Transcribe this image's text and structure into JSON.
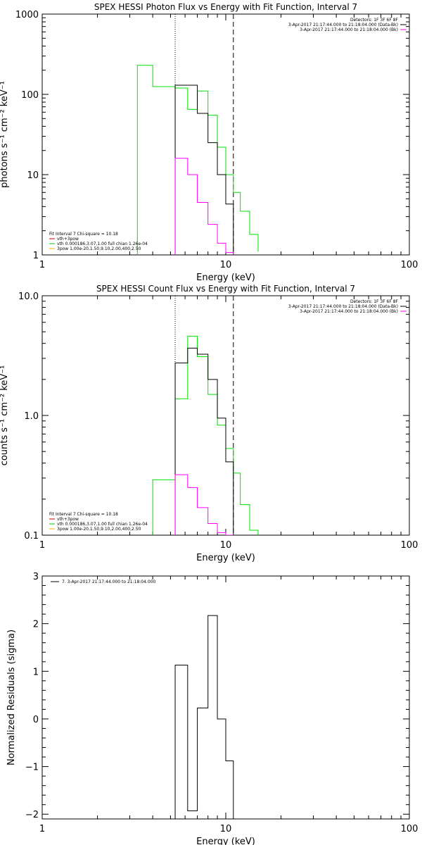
{
  "chart_data": [
    {
      "type": "line",
      "title": "SPEX HESSI Photon Flux vs Energy with Fit Function, Interval 7",
      "xlabel": "Energy (keV)",
      "ylabel": "photons s⁻¹ cm⁻² keV⁻¹",
      "xscale": "log",
      "yscale": "log",
      "xlim": [
        1,
        100
      ],
      "ylim": [
        1,
        1000
      ],
      "x_ticks": [
        "1",
        "10",
        "100"
      ],
      "y_ticks": [
        {
          "value": 1,
          "label": "1"
        },
        {
          "value": 10,
          "label": "10"
        },
        {
          "value": 100,
          "label": "100"
        },
        {
          "value": 1000,
          "label": "1000"
        }
      ],
      "vlines": [
        {
          "x": 5.3,
          "style": "dotted"
        },
        {
          "x": 11.0,
          "style": "dashed"
        }
      ],
      "legend_top": [
        {
          "text": "Detectors: 1F 3F 6F 8F",
          "color": ""
        },
        {
          "text": "3-Apr-2017 21:17:44.000 to 21:18:04.000 (Data-Bk)",
          "color": "#000000"
        },
        {
          "text": "3-Apr-2017 21:17:44.000 to 21:18:04.000 (Bk)",
          "color": "#ff00ff"
        }
      ],
      "legend_bottom": [
        {
          "text": "Fit Interval 7   Chi-square = 10.18",
          "color": ""
        },
        {
          "text": "vth+3pow",
          "color": "#cc0000"
        },
        {
          "text": "vth 0.000186,3.07,1.00  full chian 1.26e-04",
          "color": "#00cc00"
        },
        {
          "text": "3pow 1.00e-20,1.50,9.10,2.00,400,2.50",
          "color": "#ffaa00"
        }
      ],
      "series": [
        {
          "color": "#00e000",
          "edges": [
            3.3,
            4.0,
            5.3,
            6.2,
            7.0,
            8.0,
            9.0,
            10.0,
            11.0,
            12.0,
            13.5,
            15.0
          ],
          "values": [
            230,
            125,
            120,
            65,
            110,
            55,
            22,
            10,
            6,
            3.5,
            1.8,
            1.1
          ],
          "from_floor": true
        },
        {
          "color": "#000000",
          "edges": [
            5.3,
            6.2,
            7.0,
            8.0,
            9.0,
            10.0,
            11.0
          ],
          "values": [
            130,
            130,
            58,
            25,
            10,
            4.3
          ],
          "from_floor": true
        },
        {
          "color": "#ff00ff",
          "edges": [
            5.3,
            6.2,
            7.0,
            8.0,
            9.0,
            10.0,
            11.0
          ],
          "values": [
            16,
            10,
            4.5,
            2.4,
            1.4,
            1.07
          ],
          "from_floor": true
        }
      ]
    },
    {
      "type": "line",
      "title": "SPEX HESSI Count Flux vs Energy with Fit Function, Interval 7",
      "xlabel": "Energy (keV)",
      "ylabel": "counts s⁻¹ cm⁻² keV⁻¹",
      "xscale": "log",
      "yscale": "log",
      "xlim": [
        1,
        100
      ],
      "ylim": [
        0.1,
        10
      ],
      "x_ticks": [
        "1",
        "10",
        "100"
      ],
      "y_ticks": [
        {
          "value": 0.1,
          "label": "0.1"
        },
        {
          "value": 1,
          "label": "1.0"
        },
        {
          "value": 10,
          "label": "10.0"
        }
      ],
      "vlines": [
        {
          "x": 5.3,
          "style": "dotted"
        },
        {
          "x": 11.0,
          "style": "dashed"
        }
      ],
      "legend_top": [
        {
          "text": "Detectors: 1F 3F 6F 8F",
          "color": ""
        },
        {
          "text": "3-Apr-2017 21:17:44.000 to 21:18:04.000 (Data-Bk)",
          "color": "#000000"
        },
        {
          "text": "3-Apr-2017 21:17:44.000 to 21:18:04.000 (Bk)",
          "color": "#ff00ff"
        }
      ],
      "legend_bottom": [
        {
          "text": "Fit Interval 7   Chi-square = 10.18",
          "color": ""
        },
        {
          "text": "vth+3pow",
          "color": "#cc0000"
        },
        {
          "text": "vth 0.000186,3.07,1.00  full chian 1.26e-04",
          "color": "#00cc00"
        },
        {
          "text": "3pow 1.00e-20,1.50,9.10,2.00,400,2.50",
          "color": "#ffaa00"
        }
      ],
      "series": [
        {
          "color": "#00e000",
          "edges": [
            4.0,
            5.3,
            6.2,
            7.0,
            8.0,
            9.0,
            10.0,
            11.0,
            12.0,
            13.5,
            15.0
          ],
          "values": [
            0.29,
            1.38,
            4.6,
            3.1,
            1.5,
            0.83,
            0.53,
            0.33,
            0.18,
            0.11
          ],
          "from_floor": true
        },
        {
          "color": "#000000",
          "edges": [
            5.3,
            6.2,
            7.0,
            8.0,
            9.0,
            10.0,
            11.0
          ],
          "values": [
            2.75,
            3.65,
            3.25,
            2.0,
            0.95,
            0.41
          ],
          "from_floor": true
        },
        {
          "color": "#ff00ff",
          "edges": [
            5.3,
            6.2,
            7.0,
            8.0,
            9.0,
            10.0,
            11.0
          ],
          "values": [
            0.32,
            0.25,
            0.17,
            0.125,
            0.105,
            0.1
          ],
          "from_floor": true
        }
      ]
    },
    {
      "type": "line",
      "title": "",
      "xlabel": "Energy (keV)",
      "ylabel": "Normalized Residuals (sigma)",
      "xscale": "log",
      "yscale": "linear",
      "xlim": [
        1,
        100
      ],
      "ylim": [
        -2.1,
        3
      ],
      "x_ticks": [
        "1",
        "10",
        "100"
      ],
      "y_ticks": [
        {
          "value": -2,
          "label": "−2"
        },
        {
          "value": -1,
          "label": "−1"
        },
        {
          "value": 0,
          "label": "0"
        },
        {
          "value": 1,
          "label": "1"
        },
        {
          "value": 2,
          "label": "2"
        },
        {
          "value": 3,
          "label": "3"
        }
      ],
      "vlines": [],
      "legend_top": [
        {
          "text": "7.  3-Apr-2017 21:17:44.000 to 21:18:04.000",
          "color": "#000000"
        }
      ],
      "legend_bottom": [],
      "series": [
        {
          "color": "#000000",
          "edges": [
            5.3,
            6.2,
            7.0,
            8.0,
            9.0,
            10.0,
            11.0
          ],
          "values": [
            1.13,
            -1.93,
            0.23,
            2.17,
            0.0,
            -0.88
          ],
          "from_floor": true
        }
      ]
    }
  ]
}
